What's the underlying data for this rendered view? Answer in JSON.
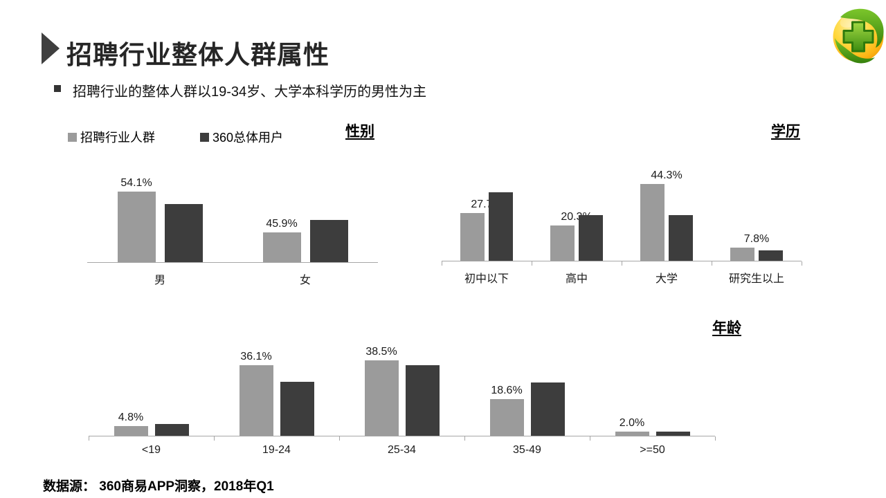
{
  "slide": {
    "title": "招聘行业整体人群属性",
    "bullet": "招聘行业的整体人群以19-34岁、大学本科学历的男性为主",
    "footer": "数据源： 360商易APP洞察，2018年Q1",
    "logo_icon": "360-security-sphere-plus-logo"
  },
  "legend": [
    {
      "label": "招聘行业人群",
      "color": "#9b9b9b"
    },
    {
      "label": "360总体用户",
      "color": "#3d3d3d"
    }
  ],
  "colors": {
    "series1": "#9b9b9b",
    "series2": "#3d3d3d",
    "axis": "#a6a6a6",
    "text": "#1a1a1a",
    "title": "#262626",
    "accent_arrow": "#3f3f3f"
  },
  "chart_data": [
    {
      "id": "gender",
      "type": "bar",
      "title": "性别",
      "categories": [
        "男",
        "女"
      ],
      "series": [
        {
          "name": "招聘行业人群",
          "color": "#9b9b9b",
          "values": [
            54.1,
            45.9
          ],
          "data_labels": [
            "54.1%",
            "45.9%"
          ]
        },
        {
          "name": "360总体用户",
          "color": "#3d3d3d",
          "values": [
            51.6,
            48.4
          ],
          "data_labels": [],
          "values_estimated": true
        }
      ],
      "ylim": [
        40,
        60
      ],
      "gridlines": false,
      "legend_position": "top-left"
    },
    {
      "id": "education",
      "type": "bar",
      "title": "学历",
      "categories": [
        "初中以下",
        "高中",
        "大学",
        "研究生以上"
      ],
      "series": [
        {
          "name": "招聘行业人群",
          "color": "#9b9b9b",
          "values": [
            27.7,
            20.3,
            44.3,
            7.8
          ],
          "data_labels": [
            "27.7%",
            "20.3%",
            "44.3%",
            "7.8%"
          ]
        },
        {
          "name": "360总体用户",
          "color": "#3d3d3d",
          "values": [
            39.5,
            26.4,
            26.6,
            6.0
          ],
          "data_labels": [],
          "values_estimated": true
        }
      ],
      "ylim": [
        0,
        60
      ],
      "gridlines": false
    },
    {
      "id": "age",
      "type": "bar",
      "title": "年龄",
      "categories": [
        "<19",
        "19-24",
        "25-34",
        "35-49",
        ">=50"
      ],
      "series": [
        {
          "name": "招聘行业人群",
          "color": "#9b9b9b",
          "values": [
            4.8,
            36.1,
            38.5,
            18.6,
            2.0
          ],
          "data_labels": [
            "4.8%",
            "36.1%",
            "38.5%",
            "18.6%",
            "2.0%"
          ]
        },
        {
          "name": "360总体用户",
          "color": "#3d3d3d",
          "values": [
            6.1,
            27.6,
            36.1,
            27.3,
            2.2
          ],
          "data_labels": [],
          "values_estimated": true
        }
      ],
      "ylim": [
        0,
        53
      ],
      "gridlines": false
    }
  ]
}
